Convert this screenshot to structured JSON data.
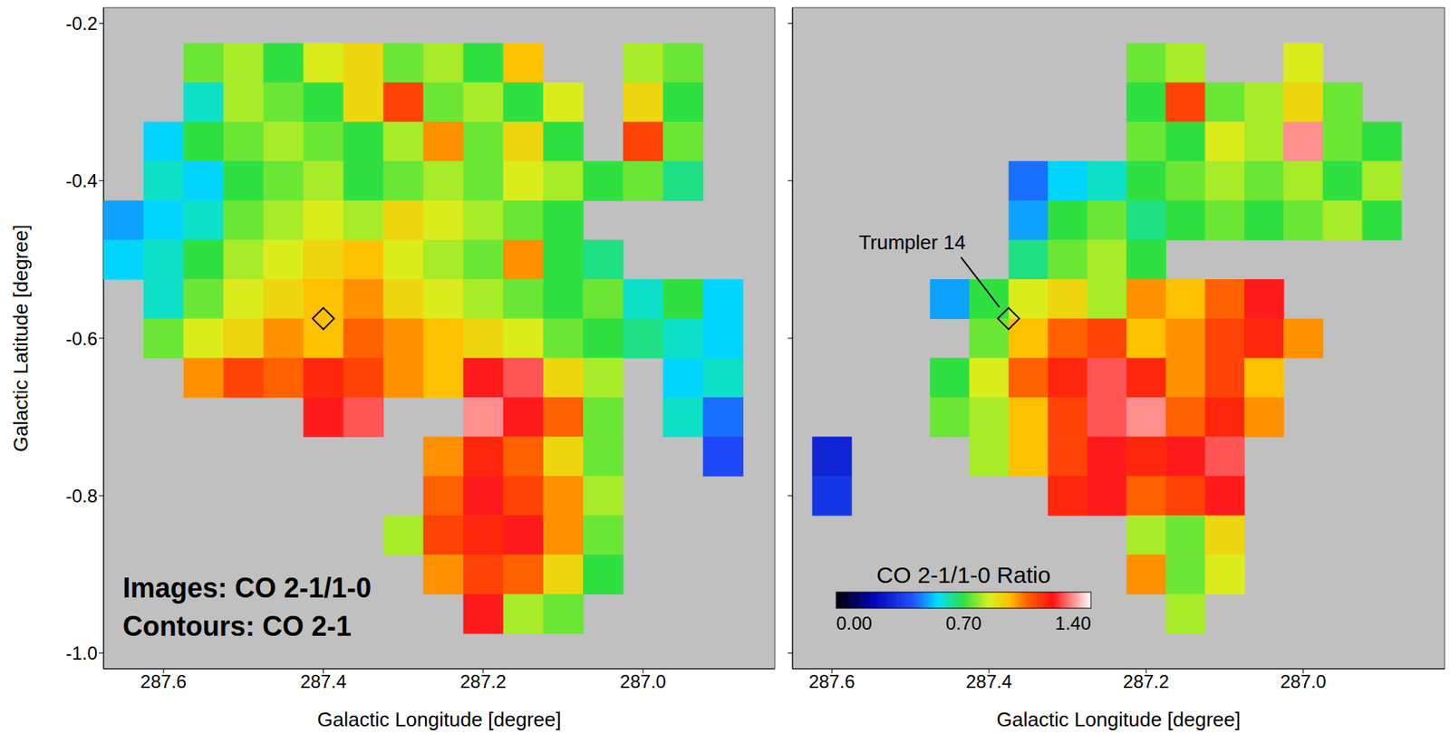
{
  "chart_data": [
    {
      "type": "heatmap",
      "xlabel": "Galactic Longitude [degree]",
      "ylabel": "Galactic Latitude [degree]",
      "xlim": [
        287.675,
        286.835
      ],
      "ylim": [
        -1.02,
        -0.18
      ],
      "xticks": [
        287.6,
        287.4,
        287.2,
        {
          "value": 287,
          "label": "287.0"
        }
      ],
      "yticks": [
        -0.2,
        -0.4,
        -0.6,
        -0.8,
        {
          "value": -1,
          "label": "-1.0"
        }
      ],
      "cell_size": 0.05,
      "lon": [
        287.65,
        287.6,
        287.55,
        287.5,
        287.45,
        287.4,
        287.35,
        287.3,
        287.25,
        287.2,
        287.15,
        287.1,
        287.05,
        287,
        286.95,
        286.9,
        286.85
      ],
      "lat": [
        -0.25,
        -0.3,
        -0.35,
        -0.4,
        -0.45,
        -0.5,
        -0.55,
        -0.6,
        -0.65,
        -0.7,
        -0.75,
        -0.8,
        -0.85,
        -0.9,
        -0.95
      ],
      "ratio": [
        [
          null,
          null,
          0.75,
          0.8,
          0.7,
          0.85,
          0.9,
          0.75,
          0.8,
          0.7,
          0.95,
          null,
          null,
          0.8,
          0.75,
          null,
          null
        ],
        [
          null,
          null,
          0.6,
          0.8,
          0.75,
          0.7,
          0.9,
          1.1,
          0.75,
          0.8,
          0.7,
          0.85,
          null,
          0.9,
          0.7,
          null,
          null
        ],
        [
          null,
          0.55,
          0.7,
          0.75,
          0.8,
          0.75,
          0.7,
          0.8,
          1.0,
          0.75,
          0.9,
          0.7,
          null,
          1.1,
          0.75,
          null,
          null
        ],
        [
          null,
          0.6,
          0.55,
          0.7,
          0.75,
          0.8,
          0.7,
          0.75,
          0.8,
          0.75,
          0.85,
          0.8,
          0.7,
          0.75,
          0.65,
          null,
          null
        ],
        [
          0.5,
          0.55,
          0.6,
          0.75,
          0.8,
          0.85,
          0.8,
          0.9,
          0.85,
          0.8,
          0.75,
          0.7,
          null,
          null,
          null,
          null,
          null
        ],
        [
          0.55,
          0.6,
          0.7,
          0.8,
          0.85,
          0.9,
          0.95,
          0.85,
          0.8,
          0.75,
          1.0,
          0.7,
          0.65,
          null,
          null,
          null,
          null
        ],
        [
          null,
          0.6,
          0.75,
          0.85,
          0.9,
          0.95,
          1.0,
          0.9,
          0.85,
          0.8,
          0.75,
          0.7,
          0.75,
          0.6,
          0.7,
          0.55,
          null
        ],
        [
          null,
          0.75,
          0.85,
          0.9,
          1.0,
          0.95,
          1.05,
          1.0,
          0.95,
          0.9,
          0.85,
          0.75,
          0.7,
          0.65,
          0.6,
          0.55,
          null
        ],
        [
          null,
          null,
          1.0,
          1.1,
          1.05,
          1.15,
          1.1,
          1.0,
          0.95,
          1.2,
          1.25,
          0.9,
          0.8,
          null,
          0.55,
          0.6,
          null
        ],
        [
          null,
          null,
          null,
          null,
          null,
          1.2,
          1.25,
          null,
          null,
          1.3,
          1.2,
          1.05,
          0.75,
          null,
          0.6,
          0.45,
          null
        ],
        [
          null,
          null,
          null,
          null,
          null,
          null,
          null,
          null,
          1.0,
          1.15,
          1.05,
          0.9,
          0.75,
          null,
          null,
          0.4,
          null
        ],
        [
          null,
          null,
          null,
          null,
          null,
          null,
          null,
          null,
          1.05,
          1.2,
          1.1,
          1.0,
          0.8,
          null,
          null,
          null,
          null
        ],
        [
          null,
          null,
          null,
          null,
          null,
          null,
          null,
          0.8,
          1.1,
          1.15,
          1.2,
          1.0,
          0.75,
          null,
          null,
          null,
          null
        ],
        [
          null,
          null,
          null,
          null,
          null,
          null,
          null,
          null,
          1.0,
          1.1,
          1.05,
          0.9,
          0.7,
          null,
          null,
          null,
          null
        ],
        [
          null,
          null,
          null,
          null,
          null,
          null,
          null,
          null,
          null,
          1.2,
          0.8,
          0.75,
          null,
          null,
          null,
          null,
          null
        ]
      ],
      "markers": [
        {
          "lon": 287.4,
          "lat": -0.575
        }
      ],
      "annotations": [
        "Images: CO 2-1/1-0",
        "Contours: CO 2-1"
      ]
    },
    {
      "type": "heatmap",
      "xlabel": "Galactic Longitude [degree]",
      "xlim": [
        287.65,
        286.82
      ],
      "ylim": [
        -1.02,
        -0.18
      ],
      "xticks": [
        287.6,
        287.4,
        287.2,
        {
          "value": 287,
          "label": "287.0"
        }
      ],
      "yticks": [
        -0.2,
        -0.4,
        -0.6,
        -0.8,
        -1
      ],
      "tick_labels": "x",
      "cell_size": 0.05,
      "lon": [
        287.65,
        287.6,
        287.55,
        287.5,
        287.45,
        287.4,
        287.35,
        287.3,
        287.25,
        287.2,
        287.15,
        287.1,
        287.05,
        287,
        286.95,
        286.9,
        286.85
      ],
      "lat": [
        -0.25,
        -0.3,
        -0.35,
        -0.4,
        -0.45,
        -0.5,
        -0.55,
        -0.6,
        -0.65,
        -0.7,
        -0.75,
        -0.8,
        -0.85,
        -0.9,
        -0.95
      ],
      "ratio": [
        [
          null,
          null,
          null,
          null,
          null,
          null,
          null,
          null,
          null,
          0.75,
          0.8,
          null,
          null,
          0.85,
          null,
          null,
          null
        ],
        [
          null,
          null,
          null,
          null,
          null,
          null,
          null,
          null,
          null,
          0.7,
          1.1,
          0.75,
          0.8,
          0.9,
          0.75,
          null,
          null
        ],
        [
          null,
          null,
          null,
          null,
          null,
          null,
          null,
          null,
          null,
          0.75,
          0.7,
          0.85,
          0.8,
          1.3,
          0.75,
          0.7,
          null
        ],
        [
          null,
          null,
          null,
          null,
          null,
          null,
          0.45,
          0.55,
          0.6,
          0.7,
          0.75,
          0.8,
          0.75,
          0.8,
          0.7,
          0.8,
          null
        ],
        [
          null,
          null,
          null,
          null,
          null,
          null,
          0.5,
          0.7,
          0.75,
          0.65,
          0.7,
          0.75,
          0.7,
          0.75,
          0.8,
          0.7,
          null
        ],
        [
          null,
          null,
          null,
          null,
          null,
          null,
          0.65,
          0.75,
          0.8,
          0.7,
          null,
          null,
          null,
          null,
          null,
          null,
          null
        ],
        [
          null,
          null,
          null,
          null,
          0.5,
          0.7,
          0.85,
          0.9,
          0.8,
          1.0,
          0.95,
          1.05,
          1.2,
          null,
          null,
          null,
          null
        ],
        [
          null,
          null,
          null,
          null,
          null,
          0.75,
          0.95,
          1.05,
          1.1,
          0.95,
          1.0,
          1.1,
          1.15,
          1.0,
          null,
          null,
          null
        ],
        [
          null,
          null,
          null,
          null,
          0.7,
          0.85,
          1.05,
          1.15,
          1.25,
          1.15,
          1.0,
          1.1,
          0.95,
          null,
          null,
          null,
          null
        ],
        [
          null,
          null,
          null,
          null,
          0.75,
          0.8,
          0.95,
          1.1,
          1.25,
          1.3,
          1.05,
          1.15,
          1.0,
          null,
          null,
          null,
          null
        ],
        [
          null,
          0.3,
          null,
          null,
          null,
          0.8,
          0.95,
          1.1,
          1.2,
          1.15,
          1.2,
          1.25,
          null,
          null,
          null,
          null,
          null
        ],
        [
          null,
          0.35,
          null,
          null,
          null,
          null,
          null,
          1.15,
          1.2,
          1.05,
          1.1,
          1.2,
          null,
          null,
          null,
          null,
          null
        ],
        [
          null,
          null,
          null,
          null,
          null,
          null,
          null,
          null,
          null,
          0.8,
          0.75,
          0.9,
          null,
          null,
          null,
          null,
          null
        ],
        [
          null,
          null,
          null,
          null,
          null,
          null,
          null,
          null,
          null,
          1.0,
          0.75,
          0.85,
          null,
          null,
          null,
          null,
          null
        ],
        [
          null,
          null,
          null,
          null,
          null,
          null,
          null,
          null,
          null,
          null,
          0.8,
          null,
          null,
          null,
          null,
          null,
          null
        ]
      ],
      "markers": [
        {
          "lon": 287.375,
          "lat": -0.575,
          "label": "Trumpler 14"
        }
      ],
      "colorbar": {
        "title": "CO 2-1/1-0 Ratio",
        "range": [
          0,
          1.4
        ],
        "ticks": [
          {
            "value": 0,
            "label": "0.00"
          },
          {
            "value": 0.7,
            "label": "0.70"
          },
          {
            "value": 1.4,
            "label": "1.40"
          }
        ]
      }
    }
  ]
}
